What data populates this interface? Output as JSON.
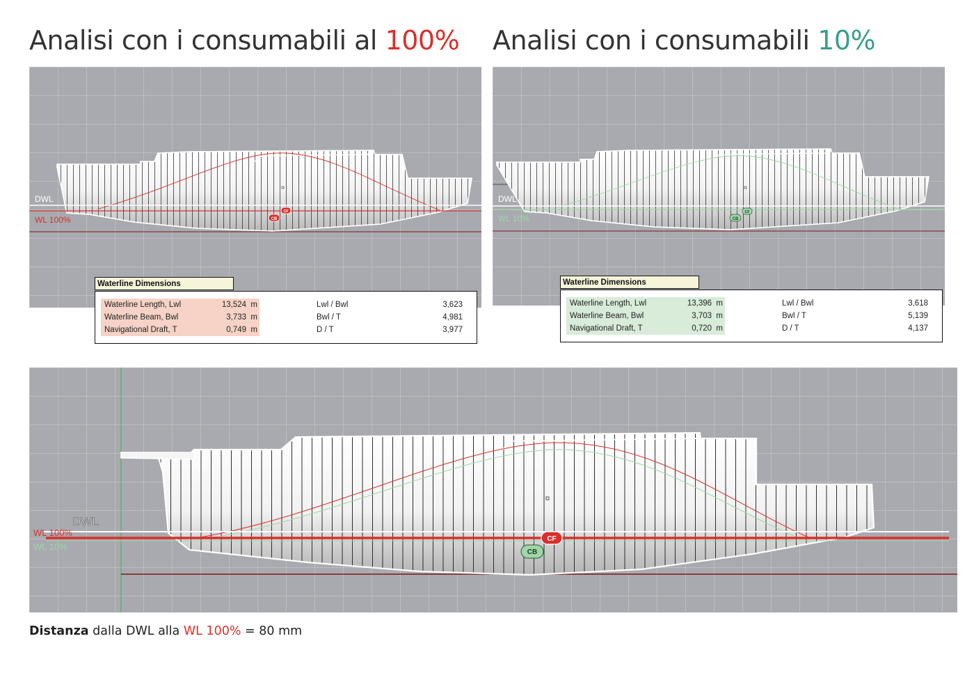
{
  "left_panel": {
    "heading_prefix": "Analisi con i consumabili al ",
    "heading_pct": "100%",
    "dwl_label": "DWL",
    "wl_label": "WL 100%",
    "cf_label": "CF",
    "cb_label": "CB",
    "table": {
      "title": "Waterline Dimensions",
      "rows": [
        {
          "label": "Waterline Length, Lwl",
          "value": "13,524",
          "unit": "m"
        },
        {
          "label": "Waterline Beam, Bwl",
          "value": "3,733",
          "unit": "m"
        },
        {
          "label": "Navigational Draft, T",
          "value": "0,749",
          "unit": "m"
        }
      ],
      "ratios": [
        {
          "label": "Lwl / Bwl",
          "value": "3,623"
        },
        {
          "label": "Bwl / T",
          "value": "4,981"
        },
        {
          "label": "D / T",
          "value": "3,977"
        }
      ]
    }
  },
  "right_panel": {
    "heading_prefix": "Analisi con i consumabili ",
    "heading_pct": "10%",
    "dwl_label": "DWL",
    "wl_label": "WL 10%",
    "cf_label": "CF",
    "cb_label": "CB",
    "table": {
      "title": "Waterline Dimensions",
      "rows": [
        {
          "label": "Waterline Length, Lwl",
          "value": "13,396",
          "unit": "m"
        },
        {
          "label": "Waterline Beam, Bwl",
          "value": "3,703",
          "unit": "m"
        },
        {
          "label": "Navigational Draft, T",
          "value": "0,720",
          "unit": "m"
        }
      ],
      "ratios": [
        {
          "label": "Lwl / Bwl",
          "value": "3,618"
        },
        {
          "label": "Bwl / T",
          "value": "5,139"
        },
        {
          "label": "D / T",
          "value": "4,137"
        }
      ]
    }
  },
  "comparison_panel": {
    "dwl_label": "DWL",
    "wl100_label": "WL 100%",
    "wl10_label": "WL 10%",
    "cf_label": "CF",
    "cb_label": "CB"
  },
  "caption": {
    "bold": "Distanza",
    "text1": " dalla DWL alla ",
    "highlight": "WL 100%",
    "text2": " = 80 mm"
  },
  "colors": {
    "red": "#d9302b",
    "teal": "#3a9e8c",
    "green_label": "#9fd6a8",
    "viewport_gray": "#a8aaaf"
  }
}
